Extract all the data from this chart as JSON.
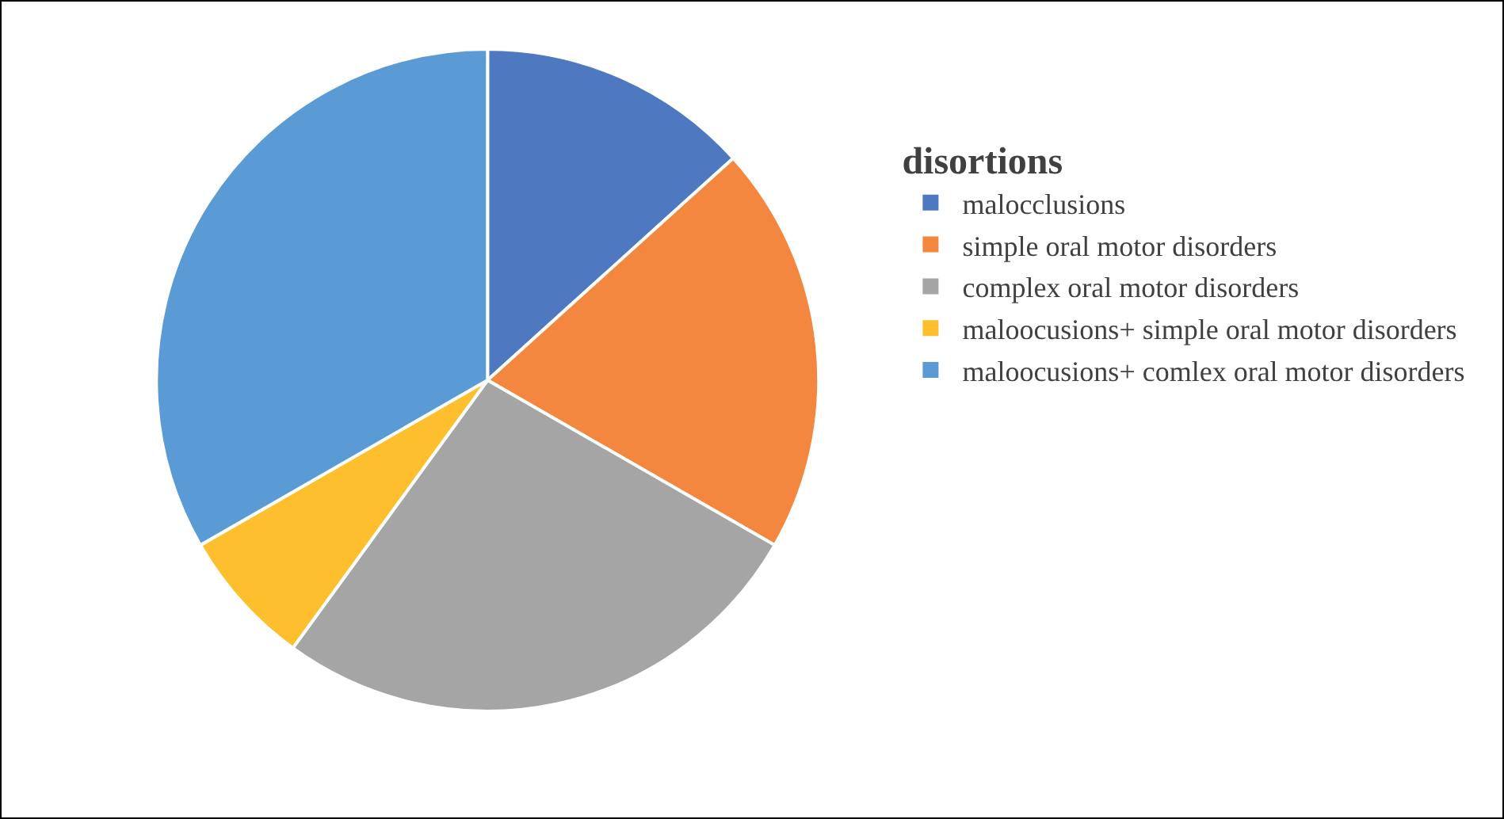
{
  "chart_data": {
    "type": "pie",
    "legend_title": "disortions",
    "legend": "right",
    "categories": [
      "malocclusions",
      "simple oral motor disorders",
      "complex oral motor disorders",
      "maloocusions+ simple oral motor disorders",
      "maloocusions+ comlex oral motor disorders"
    ],
    "values": [
      13.3,
      20,
      26.7,
      6.7,
      33.3
    ],
    "colors": [
      "#4e79c0",
      "#f4873f",
      "#a5a5a5",
      "#fdbf2d",
      "#5b9bd5"
    ]
  }
}
